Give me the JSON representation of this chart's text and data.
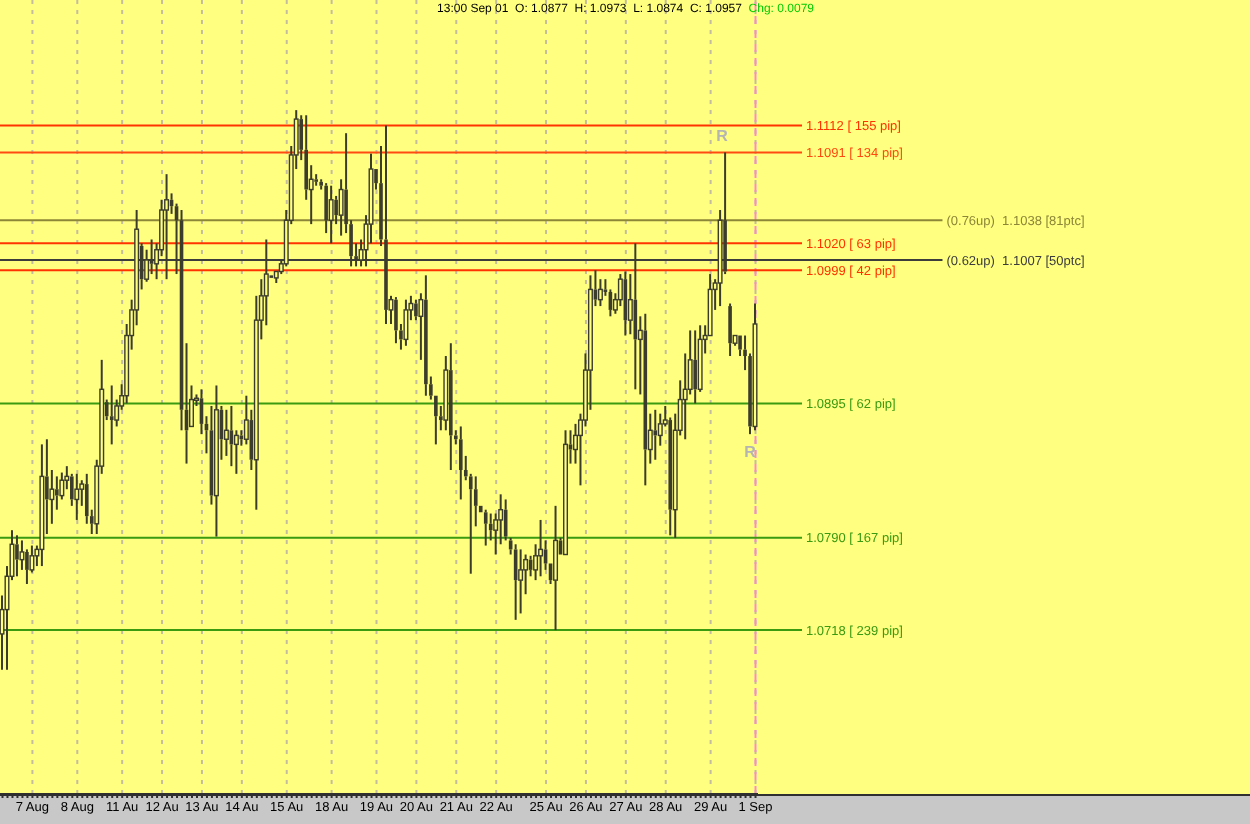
{
  "chart_data": {
    "type": "candlestick",
    "title": "13:00 Sep 01  O: 1.0877  H: 1.0973  L: 1.0874  C: 1.0957",
    "subtitle": "Chg: 0.0079",
    "color": "#3c3c2c",
    "categories": [
      null,
      null,
      null,
      null,
      null,
      null,
      "7 Aug",
      null,
      null,
      null,
      null,
      null,
      null,
      null,
      null,
      "8 Aug",
      null,
      null,
      null,
      null,
      null,
      null,
      null,
      null,
      "11 Au",
      null,
      null,
      null,
      null,
      null,
      null,
      null,
      "12 Au",
      null,
      null,
      null,
      null,
      null,
      null,
      null,
      "13 Au",
      null,
      null,
      null,
      null,
      null,
      null,
      null,
      "14 Au",
      null,
      null,
      null,
      null,
      null,
      null,
      null,
      null,
      "15 Au",
      null,
      null,
      null,
      null,
      null,
      null,
      null,
      null,
      "18 Au",
      null,
      null,
      null,
      null,
      null,
      null,
      null,
      null,
      "19 Au",
      null,
      null,
      null,
      null,
      null,
      null,
      null,
      "20 Au",
      null,
      null,
      null,
      null,
      null,
      null,
      null,
      "21 Au",
      null,
      null,
      null,
      null,
      null,
      null,
      null,
      "22 Au",
      null,
      null,
      null,
      null,
      null,
      null,
      null,
      null,
      null,
      "25 Au",
      null,
      null,
      null,
      null,
      null,
      null,
      null,
      "26 Au",
      null,
      null,
      null,
      null,
      null,
      null,
      null,
      "27 Au",
      null,
      null,
      null,
      null,
      null,
      null,
      null,
      "28 Au",
      null,
      null,
      null,
      null,
      null,
      null,
      null,
      null,
      "29 Au",
      null,
      null,
      null,
      null,
      null,
      null,
      null,
      null,
      "1 Sep"
    ],
    "ohlc": [
      [
        1.0715,
        1.0745,
        1.0687,
        1.0734
      ],
      [
        1.0734,
        1.0768,
        1.0687,
        1.076
      ],
      [
        1.076,
        1.0796,
        1.0757,
        1.0785
      ],
      [
        1.0785,
        1.0792,
        1.076,
        1.0773
      ],
      [
        1.0773,
        1.0788,
        1.0765,
        1.0779
      ],
      [
        1.0779,
        1.0781,
        1.0754,
        1.0765
      ],
      [
        1.0765,
        1.0784,
        1.0763,
        1.0776
      ],
      [
        1.0776,
        1.0784,
        1.0768,
        1.0781
      ],
      [
        1.0781,
        1.0863,
        1.0768,
        1.0838
      ],
      [
        1.0838,
        1.0867,
        1.0793,
        1.082
      ],
      [
        1.082,
        1.0843,
        1.0801,
        1.0828
      ],
      [
        1.0828,
        1.0838,
        1.0812,
        1.0823
      ],
      [
        1.0823,
        1.0841,
        1.082,
        1.0835
      ],
      [
        1.0835,
        1.0846,
        1.0828,
        1.0838
      ],
      [
        1.0838,
        1.084,
        1.0815,
        1.082
      ],
      [
        1.082,
        1.084,
        1.0804,
        1.0828
      ],
      [
        1.0828,
        1.0835,
        1.0815,
        1.0832
      ],
      [
        1.0832,
        1.084,
        1.0801,
        1.0807
      ],
      [
        1.0807,
        1.0812,
        1.0793,
        1.0801
      ],
      [
        1.0801,
        1.0851,
        1.0793,
        1.0846
      ],
      [
        1.0846,
        1.0929,
        1.084,
        1.0906
      ],
      [
        1.0896,
        1.0898,
        1.0882,
        1.0885
      ],
      [
        1.0885,
        1.0909,
        1.0863,
        1.0882
      ],
      [
        1.0882,
        1.0898,
        1.0877,
        1.0893
      ],
      [
        1.0893,
        1.091,
        1.089,
        1.0901
      ],
      [
        1.0901,
        1.0957,
        1.0895,
        1.0948
      ],
      [
        1.0948,
        1.0976,
        1.0937,
        1.0968
      ],
      [
        1.0968,
        1.1046,
        1.0956,
        1.1031
      ],
      [
        1.1018,
        1.102,
        1.0984,
        1.0992
      ],
      [
        1.0992,
        1.1015,
        1.099,
        1.1007
      ],
      [
        1.1007,
        1.1023,
        1.0996,
        1.1004
      ],
      [
        1.1004,
        1.102,
        1.0992,
        1.1015
      ],
      [
        1.1015,
        1.1054,
        1.101,
        1.1046
      ],
      [
        1.1046,
        1.1074,
        1.0992,
        1.1054
      ],
      [
        1.1054,
        1.1059,
        1.1043,
        1.1049
      ],
      [
        1.1049,
        1.1051,
        1.0996,
        1.1038
      ],
      [
        1.1038,
        1.1046,
        1.0874,
        1.089
      ],
      [
        1.089,
        1.0942,
        1.0848,
        1.0874
      ],
      [
        1.0877,
        1.0909,
        1.0876,
        1.0898
      ],
      [
        1.0898,
        1.0902,
        1.0893,
        1.0899
      ],
      [
        1.0899,
        1.0906,
        1.0871,
        1.0879
      ],
      [
        1.0879,
        1.0885,
        1.0856,
        1.0874
      ],
      [
        1.0874,
        1.0893,
        1.0816,
        1.0823
      ],
      [
        1.0823,
        1.0909,
        1.0791,
        1.089
      ],
      [
        1.089,
        1.0893,
        1.0851,
        1.0867
      ],
      [
        1.0867,
        1.089,
        1.0854,
        1.0874
      ],
      [
        1.0874,
        1.0893,
        1.0846,
        1.0863
      ],
      [
        1.0863,
        1.0874,
        1.084,
        1.087
      ],
      [
        1.087,
        1.0874,
        1.0862,
        1.0867
      ],
      [
        1.0867,
        1.0901,
        1.0863,
        1.0882
      ],
      [
        1.0882,
        1.089,
        1.0843,
        1.0851
      ],
      [
        1.0851,
        1.0979,
        1.0812,
        1.096
      ],
      [
        1.096,
        1.0992,
        1.0945,
        1.0979
      ],
      [
        1.0979,
        1.1023,
        1.0956,
        1.0996
      ],
      [
        1.0995,
        1.0996,
        1.0992,
        1.0993
      ],
      [
        1.0993,
        1.0999,
        1.0989,
        1.0998
      ],
      [
        1.0998,
        1.1007,
        1.0996,
        1.1004
      ],
      [
        1.1004,
        1.1046,
        1.1002,
        1.1038
      ],
      [
        1.1038,
        1.1096,
        1.1035,
        1.1089
      ],
      [
        1.1089,
        1.1124,
        1.1078,
        1.1117
      ],
      [
        1.1117,
        1.112,
        1.1085,
        1.1093
      ],
      [
        1.1093,
        1.112,
        1.1054,
        1.1062
      ],
      [
        1.1062,
        1.1081,
        1.1035,
        1.107
      ],
      [
        1.107,
        1.1074,
        1.1065,
        1.1068
      ],
      [
        1.1068,
        1.107,
        1.1062,
        1.1065
      ],
      [
        1.1065,
        1.1067,
        1.1028,
        1.1038
      ],
      [
        1.1038,
        1.1065,
        1.102,
        1.1054
      ],
      [
        1.1054,
        1.1057,
        1.1035,
        1.1042
      ],
      [
        1.1042,
        1.107,
        1.1026,
        1.1062
      ],
      [
        1.1062,
        1.1106,
        1.1028,
        1.1035
      ],
      [
        1.1035,
        1.1038,
        1.1002,
        1.101
      ],
      [
        1.101,
        1.102,
        1.1002,
        1.1007
      ],
      [
        1.1007,
        1.1023,
        1.1002,
        1.1015
      ],
      [
        1.1015,
        1.1042,
        1.1002,
        1.1035
      ],
      [
        1.1035,
        1.109,
        1.102,
        1.1078
      ],
      [
        1.1078,
        1.1079,
        1.1062,
        1.1067
      ],
      [
        1.1067,
        1.1096,
        1.1018,
        1.1023
      ],
      [
        1.1023,
        1.1112,
        1.0957,
        1.0968
      ],
      [
        1.0968,
        1.0979,
        1.0957,
        1.0976
      ],
      [
        1.0976,
        1.0978,
        1.0942,
        1.0952
      ],
      [
        1.0952,
        1.0957,
        1.0937,
        1.0945
      ],
      [
        1.0945,
        1.0976,
        1.094,
        1.0968
      ],
      [
        1.0968,
        1.0979,
        1.096,
        1.0973
      ],
      [
        1.0973,
        1.0976,
        1.096,
        1.0963
      ],
      [
        1.0963,
        1.0981,
        1.0929,
        1.0976
      ],
      [
        1.0976,
        1.0995,
        1.0901,
        1.091
      ],
      [
        1.091,
        1.0916,
        1.0898,
        1.0901
      ],
      [
        1.0901,
        1.0902,
        1.0863,
        1.0885
      ],
      [
        1.0885,
        1.0893,
        1.0874,
        1.0882
      ],
      [
        1.0882,
        1.0932,
        1.0874,
        1.0921
      ],
      [
        1.0921,
        1.0942,
        1.0843,
        1.087
      ],
      [
        1.087,
        1.0874,
        1.0863,
        1.0867
      ],
      [
        1.0867,
        1.0877,
        1.082,
        1.0843
      ],
      [
        1.0843,
        1.0854,
        1.0835,
        1.0838
      ],
      [
        1.0838,
        1.084,
        1.0762,
        1.0828
      ],
      [
        1.0828,
        1.0838,
        1.0799,
        1.0815
      ],
      [
        1.0815,
        1.0816,
        1.0809,
        1.081
      ],
      [
        1.081,
        1.0812,
        1.0784,
        1.0801
      ],
      [
        1.0801,
        1.0809,
        1.0788,
        1.0796
      ],
      [
        1.0796,
        1.0809,
        1.0777,
        1.0804
      ],
      [
        1.0804,
        1.0824,
        1.0785,
        1.0812
      ],
      [
        1.0812,
        1.082,
        1.0788,
        1.0791
      ],
      [
        1.0788,
        1.079,
        1.0777,
        1.0781
      ],
      [
        1.0781,
        1.0785,
        1.0726,
        1.0757
      ],
      [
        1.0757,
        1.0781,
        1.0731,
        1.0765
      ],
      [
        1.0765,
        1.0777,
        1.0746,
        1.0773
      ],
      [
        1.0773,
        1.0776,
        1.076,
        1.0765
      ],
      [
        1.0765,
        1.0785,
        1.0757,
        1.0776
      ],
      [
        1.0776,
        1.0804,
        1.076,
        1.0781
      ],
      [
        1.0781,
        1.0788,
        1.0765,
        1.077
      ],
      [
        1.077,
        1.0771,
        1.0754,
        1.0757
      ],
      [
        1.0757,
        1.0815,
        1.0718,
        1.0788
      ],
      [
        1.0788,
        1.079,
        1.0776,
        1.0777
      ],
      [
        1.0777,
        1.0874,
        1.0776,
        1.0863
      ],
      [
        1.0863,
        1.0874,
        1.0848,
        1.0859
      ],
      [
        1.0859,
        1.0879,
        1.0848,
        1.087
      ],
      [
        1.087,
        1.0887,
        1.0831,
        1.0882
      ],
      [
        1.0882,
        1.0934,
        1.0877,
        1.0921
      ],
      [
        1.0921,
        1.0995,
        1.089,
        1.0984
      ],
      [
        1.0984,
        1.0999,
        1.0971,
        1.0976
      ],
      [
        1.0976,
        1.0992,
        1.0971,
        1.0984
      ],
      [
        1.0984,
        1.0992,
        1.0979,
        1.0982
      ],
      [
        1.0982,
        1.0984,
        1.0963,
        1.0968
      ],
      [
        1.0968,
        1.0981,
        1.0965,
        1.0976
      ],
      [
        1.0976,
        1.0996,
        1.0971,
        1.0992
      ],
      [
        1.0992,
        1.0998,
        1.0948,
        1.096
      ],
      [
        1.096,
        1.0996,
        1.0949,
        1.0976
      ],
      [
        1.0976,
        1.102,
        1.0906,
        1.0945
      ],
      [
        1.0945,
        1.0963,
        1.0902,
        1.0952
      ],
      [
        1.0952,
        1.0965,
        1.0831,
        1.0859
      ],
      [
        1.0859,
        1.0887,
        1.0848,
        1.0874
      ],
      [
        1.0874,
        1.089,
        1.0851,
        1.087
      ],
      [
        1.087,
        1.0887,
        1.0862,
        1.0879
      ],
      [
        1.0879,
        1.0893,
        1.0877,
        1.0882
      ],
      [
        1.0882,
        1.0884,
        1.0792,
        1.0812
      ],
      [
        1.0812,
        1.0887,
        1.079,
        1.0874
      ],
      [
        1.0874,
        1.0913,
        1.087,
        1.0898
      ],
      [
        1.0898,
        1.0934,
        1.0867,
        1.0906
      ],
      [
        1.0906,
        1.0952,
        1.0902,
        1.0929
      ],
      [
        1.0929,
        1.0952,
        1.0895,
        1.0906
      ],
      [
        1.0906,
        1.0956,
        1.0904,
        1.0945
      ],
      [
        1.0945,
        1.0956,
        1.0934,
        1.0948
      ],
      [
        1.0948,
        1.0996,
        1.0947,
        1.0984
      ],
      [
        1.0984,
        1.0992,
        1.0968,
        1.0989
      ],
      [
        1.0989,
        1.1046,
        1.0971,
        1.1038
      ],
      [
        1.1038,
        1.1091,
        1.0996,
        1.0998
      ],
      [
        1.0971,
        1.0973,
        1.0932,
        1.0942
      ],
      [
        1.0942,
        1.0949,
        1.094,
        1.0948
      ],
      [
        1.0948,
        1.0949,
        1.0932,
        1.0937
      ],
      [
        1.0937,
        1.0948,
        1.0921,
        1.0932
      ],
      [
        1.0932,
        1.0934,
        1.0871,
        1.0877
      ],
      [
        1.0877,
        1.0973,
        1.0874,
        1.0957
      ]
    ],
    "ylim": [
      1.059,
      1.121
    ],
    "tick_labels": "x",
    "grid": "x",
    "ref_lines": [
      {
        "axis": "y",
        "value": 1.1112,
        "label": "1.1112 [ 155 pip]",
        "color": "#ff3300"
      },
      {
        "axis": "y",
        "value": 1.1091,
        "label": "1.1091 [ 134 pip]",
        "color": "#ff4a10"
      },
      {
        "axis": "y",
        "value": 1.102,
        "label": "1.1020 [ 63 pip]",
        "color": "#ff3300"
      },
      {
        "axis": "y",
        "value": 1.0999,
        "label": "1.0999 [ 42 pip]",
        "color": "#ff3300"
      },
      {
        "axis": "y",
        "value": 1.0895,
        "label": "1.0895 [ 62 pip]",
        "color": "#3a9a10"
      },
      {
        "axis": "y",
        "value": 1.079,
        "label": "1.0790 [ 167 pip]",
        "color": "#3a9a10"
      },
      {
        "axis": "y",
        "value": 1.0718,
        "label": "1.0718 [ 239 pip]",
        "color": "#3a9a10"
      },
      {
        "axis": "y",
        "value": 1.1038,
        "label": "(0.76up)  1.1038 [81ptc]",
        "color": "#8c8638"
      },
      {
        "axis": "y",
        "value": 1.1007,
        "label": "(0.62up)  1.1007 [50ptc]",
        "color": "#3c3c3c"
      },
      {
        "axis": "x",
        "value": "1 Sep",
        "color": "#ff88cc",
        "line_style": "dashed"
      }
    ],
    "annotations": [
      "R",
      "R"
    ]
  }
}
